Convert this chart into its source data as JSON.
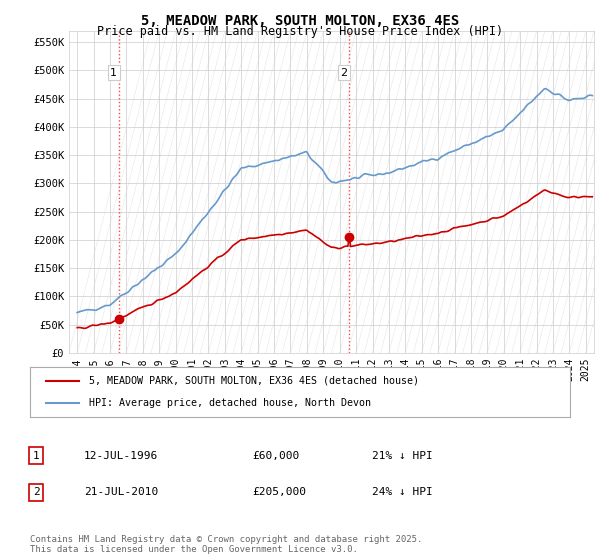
{
  "title": "5, MEADOW PARK, SOUTH MOLTON, EX36 4ES",
  "subtitle": "Price paid vs. HM Land Registry's House Price Index (HPI)",
  "legend_line1": "5, MEADOW PARK, SOUTH MOLTON, EX36 4ES (detached house)",
  "legend_line2": "HPI: Average price, detached house, North Devon",
  "annotation1_label": "1",
  "annotation1_date": "12-JUL-1996",
  "annotation1_price": "£60,000",
  "annotation1_hpi": "21% ↓ HPI",
  "annotation2_label": "2",
  "annotation2_date": "21-JUL-2010",
  "annotation2_price": "£205,000",
  "annotation2_hpi": "24% ↓ HPI",
  "copyright": "Contains HM Land Registry data © Crown copyright and database right 2025.\nThis data is licensed under the Open Government Licence v3.0.",
  "sale1_x": 1996.53,
  "sale1_y": 60000,
  "sale2_x": 2010.55,
  "sale2_y": 205000,
  "price_color": "#cc0000",
  "hpi_color": "#6699cc",
  "background_color": "#ffffff",
  "plot_bg_color": "#ffffff",
  "grid_color": "#cccccc",
  "ylim": [
    0,
    570000
  ],
  "xlim": [
    1993.5,
    2025.5
  ],
  "yticks": [
    0,
    50000,
    100000,
    150000,
    200000,
    250000,
    300000,
    350000,
    400000,
    450000,
    500000,
    550000
  ],
  "ytick_labels": [
    "£0",
    "£50K",
    "£100K",
    "£150K",
    "£200K",
    "£250K",
    "£300K",
    "£350K",
    "£400K",
    "£450K",
    "£500K",
    "£550K"
  ],
  "xticks": [
    1994,
    1995,
    1996,
    1997,
    1998,
    1999,
    2000,
    2001,
    2002,
    2003,
    2004,
    2005,
    2006,
    2007,
    2008,
    2009,
    2010,
    2011,
    2012,
    2013,
    2014,
    2015,
    2016,
    2017,
    2018,
    2019,
    2020,
    2021,
    2022,
    2023,
    2024,
    2025
  ],
  "vline1_x": 1996.53,
  "vline2_x": 2010.55,
  "vline_color": "#ff4444",
  "vline_style": "dotted"
}
